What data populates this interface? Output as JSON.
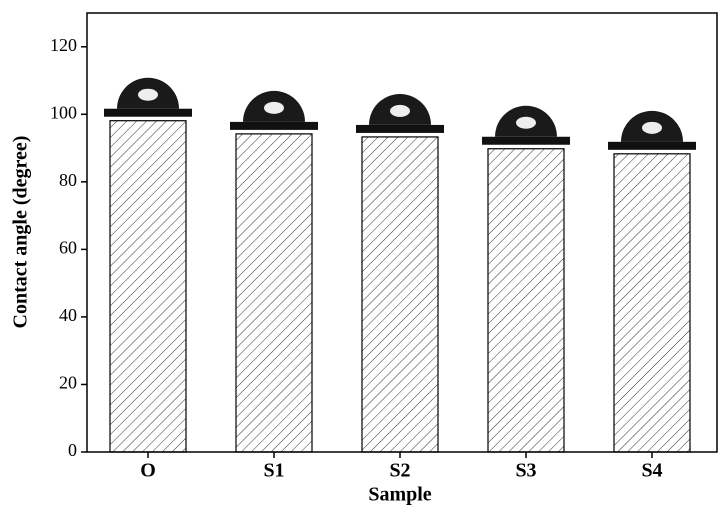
{
  "chart_data": {
    "type": "bar",
    "x_label": "Sample",
    "y_label": "Contact angle (degree)",
    "categories": [
      "O",
      "S1",
      "S2",
      "S3",
      "S4"
    ],
    "values": [
      98.1,
      94.2,
      93.3,
      89.8,
      88.3
    ],
    "color": "#000000",
    "ylim": [
      0,
      130
    ],
    "yticks": [
      0,
      20,
      40,
      60,
      80,
      100,
      120
    ]
  }
}
